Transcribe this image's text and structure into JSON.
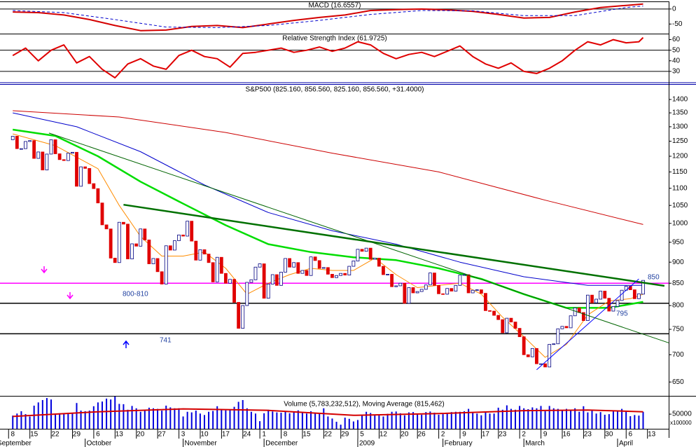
{
  "chart_data": [
    {
      "type": "line",
      "title": "MACD (16.6557)",
      "xlim": [
        -3,
        154
      ],
      "ylim": [
        -82,
        23
      ],
      "yticks": [
        0,
        -50
      ],
      "hlines": [
        0
      ],
      "series": [
        {
          "color": "#d40000",
          "width": 2,
          "x": [
            0,
            6,
            12,
            18,
            24,
            30,
            36,
            42,
            48,
            54,
            60,
            66,
            72,
            78,
            84,
            90,
            96,
            102,
            108,
            114,
            120,
            126,
            132,
            138,
            144,
            148
          ],
          "values": [
            -10,
            -12,
            -20,
            -35,
            -55,
            -72,
            -70,
            -58,
            -55,
            -62,
            -50,
            -38,
            -28,
            -20,
            -5,
            -2,
            0,
            -3,
            -8,
            -18,
            -30,
            -28,
            -10,
            5,
            12,
            16.6557
          ]
        },
        {
          "color": "#0000cc",
          "width": 1,
          "dash": true,
          "x": [
            0,
            12,
            24,
            36,
            48,
            60,
            72,
            84,
            96,
            108,
            120,
            132,
            144,
            148
          ],
          "values": [
            -5,
            -12,
            -35,
            -60,
            -62,
            -55,
            -38,
            -18,
            -5,
            -6,
            -22,
            -22,
            5,
            10
          ]
        }
      ]
    },
    {
      "type": "line",
      "title": "Relative Strength Index (61.9725)",
      "xlim": [
        -3,
        154
      ],
      "ylim": [
        20,
        65
      ],
      "yticks": [
        30,
        40,
        50,
        60
      ],
      "hlines": [
        50,
        30
      ],
      "series": [
        {
          "color": "#e00000",
          "width": 2,
          "x": [
            0,
            3,
            6,
            9,
            12,
            15,
            18,
            21,
            24,
            27,
            30,
            33,
            36,
            39,
            42,
            45,
            48,
            51,
            54,
            57,
            60,
            63,
            66,
            69,
            72,
            75,
            78,
            81,
            84,
            87,
            90,
            93,
            96,
            99,
            102,
            105,
            108,
            111,
            114,
            117,
            120,
            123,
            126,
            129,
            132,
            135,
            138,
            141,
            144,
            147,
            148
          ],
          "values": [
            45,
            52,
            40,
            50,
            55,
            38,
            44,
            32,
            24,
            37,
            42,
            35,
            32,
            45,
            50,
            44,
            42,
            34,
            47,
            48,
            50,
            52,
            48,
            50,
            53,
            49,
            52,
            58,
            55,
            47,
            42,
            46,
            48,
            44,
            49,
            54,
            44,
            37,
            33,
            38,
            30,
            28,
            33,
            40,
            50,
            58,
            55,
            60,
            57,
            58,
            61.9725
          ]
        }
      ]
    },
    {
      "type": "candlestick",
      "title": "S&P500 (825.160, 856.560, 825.160, 856.560, +31.4000)",
      "log": true,
      "xlim": [
        -3,
        154
      ],
      "ylim": [
        626,
        1457
      ],
      "yticks": [
        650,
        700,
        750,
        800,
        850,
        900,
        950,
        1000,
        1050,
        1100,
        1150,
        1200,
        1250,
        1300,
        1350,
        1400
      ],
      "up_color": "#ffffff",
      "up_edge": "#000080",
      "down_color": "#e00000",
      "open": [
        1255,
        1267,
        1225,
        1225,
        1249,
        1252,
        1193,
        1214,
        1156,
        1207,
        1255,
        1208,
        1189,
        1186,
        1210,
        1213,
        1106,
        1166,
        1161,
        1114,
        1099,
        1057,
        996,
        985,
        910,
        899,
        1003,
        998,
        908,
        946,
        940,
        985,
        956,
        896,
        909,
        877,
        848,
        941,
        930,
        954,
        969,
        966,
        1006,
        953,
        905,
        931,
        920,
        899,
        853,
        912,
        873,
        850,
        859,
        807,
        752,
        800,
        852,
        858,
        888,
        896,
        816,
        848,
        870,
        845,
        876,
        909,
        888,
        899,
        873,
        880,
        868,
        913,
        904,
        885,
        887,
        871,
        863,
        868,
        873,
        869,
        890,
        903,
        932,
        927,
        935,
        907,
        910,
        890,
        870,
        871,
        842,
        844,
        850,
        805,
        840,
        828,
        831,
        836,
        846,
        874,
        845,
        826,
        825,
        838,
        832,
        845,
        869,
        870,
        828,
        834,
        835,
        827,
        789,
        788,
        779,
        770,
        743,
        773,
        765,
        752,
        735,
        700,
        696,
        712,
        683,
        683,
        677,
        720,
        721,
        751,
        756,
        753,
        778,
        795,
        785,
        768,
        823,
        806,
        814,
        832,
        816,
        788,
        798,
        811,
        834,
        843,
        835,
        815,
        825.16
      ],
      "close": [
        1267,
        1225,
        1225,
        1249,
        1252,
        1193,
        1214,
        1156,
        1207,
        1255,
        1208,
        1189,
        1186,
        1210,
        1213,
        1106,
        1166,
        1161,
        1114,
        1099,
        1057,
        996,
        985,
        910,
        899,
        1003,
        998,
        908,
        946,
        940,
        985,
        956,
        896,
        909,
        877,
        848,
        941,
        930,
        954,
        969,
        966,
        1006,
        953,
        905,
        931,
        920,
        899,
        853,
        912,
        873,
        850,
        859,
        807,
        752,
        800,
        852,
        858,
        888,
        896,
        816,
        848,
        870,
        845,
        876,
        909,
        888,
        899,
        873,
        880,
        868,
        913,
        904,
        885,
        887,
        871,
        863,
        868,
        873,
        869,
        890,
        903,
        932,
        927,
        935,
        907,
        910,
        890,
        870,
        871,
        842,
        844,
        850,
        805,
        840,
        828,
        831,
        836,
        846,
        874,
        845,
        826,
        825,
        838,
        832,
        845,
        869,
        870,
        828,
        834,
        835,
        827,
        789,
        788,
        779,
        770,
        743,
        773,
        765,
        752,
        735,
        700,
        696,
        712,
        683,
        683,
        677,
        720,
        721,
        751,
        756,
        753,
        778,
        795,
        785,
        768,
        823,
        806,
        814,
        832,
        816,
        788,
        798,
        811,
        834,
        843,
        835,
        815,
        826,
        856.56
      ],
      "series": [
        {
          "color": "#cc0000",
          "width": 1,
          "x": [
            0,
            25,
            50,
            75,
            100,
            125,
            148
          ],
          "values": [
            1358,
            1335,
            1280,
            1210,
            1150,
            1065,
            997
          ]
        },
        {
          "color": "#0000cc",
          "width": 1,
          "x": [
            0,
            15,
            30,
            45,
            60,
            75,
            90,
            105,
            120,
            135,
            148
          ],
          "values": [
            1350,
            1300,
            1215,
            1110,
            1030,
            980,
            945,
            900,
            865,
            845,
            845
          ]
        },
        {
          "color": "#00dd00",
          "width": 2.5,
          "x": [
            0,
            10,
            20,
            30,
            40,
            50,
            60,
            70,
            80,
            90,
            100,
            110,
            120,
            130,
            140,
            148
          ],
          "values": [
            1290,
            1268,
            1200,
            1120,
            1055,
            995,
            945,
            925,
            912,
            905,
            885,
            860,
            825,
            795,
            795,
            808
          ]
        },
        {
          "color": "#ff8c00",
          "width": 1,
          "x": [
            0,
            10,
            20,
            25,
            30,
            35,
            40,
            45,
            50,
            55,
            60,
            65,
            70,
            75,
            80,
            85,
            90,
            95,
            100,
            105,
            110,
            115,
            120,
            125,
            130,
            135,
            140,
            145,
            148
          ],
          "values": [
            1275,
            1235,
            1160,
            1050,
            965,
            915,
            915,
            925,
            885,
            825,
            850,
            870,
            885,
            880,
            880,
            910,
            870,
            840,
            845,
            850,
            825,
            775,
            735,
            695,
            720,
            780,
            810,
            815,
            825
          ]
        }
      ],
      "trendlines": [
        {
          "color": "#007000",
          "width": 2.5,
          "x": [
            26,
            153
          ],
          "values": [
            1052,
            844
          ]
        },
        {
          "color": "#006400",
          "width": 1,
          "x": [
            8.5,
            154
          ],
          "values": [
            1278,
            723
          ]
        },
        {
          "color": "#0000ff",
          "width": 1,
          "x": [
            123,
            147
          ],
          "values": [
            672,
            860
          ]
        }
      ],
      "levels": [
        {
          "value": 850,
          "color": "#ff00ff"
        },
        {
          "value": 805,
          "color": "#000000"
        },
        {
          "value": 741,
          "color": "#000000"
        }
      ],
      "annotations": [
        "850",
        "800-810",
        "741",
        "795"
      ]
    },
    {
      "type": "bar",
      "title": "Volume (5,783,232,512), Moving Average (815,462)",
      "xlim": [
        -3,
        154
      ],
      "ylim": [
        0,
        110000
      ],
      "yticks": [
        50000
      ],
      "unit_label": "x100000",
      "color": "#0000dd",
      "values": [
        45000,
        52000,
        60000,
        50000,
        42000,
        79000,
        90000,
        98000,
        105000,
        100000,
        52000,
        53000,
        53000,
        55000,
        52000,
        88000,
        62000,
        60000,
        62000,
        77000,
        90000,
        93000,
        103000,
        100000,
        110000,
        85000,
        84000,
        65000,
        78000,
        70000,
        58000,
        61000,
        72000,
        70000,
        68000,
        62000,
        79000,
        73000,
        70000,
        70000,
        42000,
        58000,
        56000,
        62000,
        52000,
        47000,
        58000,
        61000,
        77000,
        64000,
        63000,
        64000,
        75000,
        92000,
        98000,
        70000,
        58000,
        52000,
        26000,
        53000,
        65000,
        59000,
        56000,
        55000,
        60000,
        53000,
        58000,
        63000,
        55000,
        52000,
        60000,
        52000,
        55000,
        70000,
        42000,
        35000,
        24000,
        14000,
        38000,
        34000,
        25000,
        30000,
        48000,
        58000,
        54000,
        48000,
        46000,
        42000,
        51000,
        58000,
        59000,
        53000,
        46000,
        56000,
        57000,
        52000,
        48000,
        57000,
        59000,
        55000,
        48000,
        50000,
        53000,
        57000,
        58000,
        58000,
        60000,
        68000,
        54000,
        52000,
        46000,
        55000,
        52000,
        52000,
        72000,
        65000,
        80000,
        68000,
        65000,
        78000,
        70000,
        67000,
        73000,
        70000,
        78000,
        60000,
        78000,
        70000,
        68000,
        64000,
        68000,
        62000,
        70000,
        58000,
        77000,
        56000,
        62000,
        52000,
        57000,
        48000,
        50000,
        62000,
        60000,
        68000,
        59000,
        43000,
        47000,
        45000,
        57832
      ],
      "series": [
        {
          "color": "#d40000",
          "width": 2,
          "x": [
            0,
            20,
            40,
            60,
            80,
            100,
            120,
            135,
            148
          ],
          "values": [
            42000,
            58000,
            68000,
            63000,
            46000,
            52000,
            62000,
            64000,
            58000
          ]
        }
      ],
      "xticks": [
        {
          "value": 0,
          "label": "8"
        },
        {
          "value": 5,
          "label": "15"
        },
        {
          "value": 10,
          "label": "22"
        },
        {
          "value": 15,
          "label": "29"
        },
        {
          "value": 20,
          "label": "6"
        },
        {
          "value": 25,
          "label": "13"
        },
        {
          "value": 30,
          "label": "20"
        },
        {
          "value": 35,
          "label": "27"
        },
        {
          "value": 40,
          "label": "3"
        },
        {
          "value": 45,
          "label": "10"
        },
        {
          "value": 50,
          "label": "17"
        },
        {
          "value": 55,
          "label": "24"
        },
        {
          "value": 59,
          "label": "1"
        },
        {
          "value": 64,
          "label": "8"
        },
        {
          "value": 69,
          "label": "15"
        },
        {
          "value": 74,
          "label": "22"
        },
        {
          "value": 78,
          "label": "29"
        },
        {
          "value": 82,
          "label": "5"
        },
        {
          "value": 87,
          "label": "12"
        },
        {
          "value": 92,
          "label": "20"
        },
        {
          "value": 96,
          "label": "26"
        },
        {
          "value": 101,
          "label": "2"
        },
        {
          "value": 106,
          "label": "9"
        },
        {
          "value": 111,
          "label": "17"
        },
        {
          "value": 115,
          "label": "23"
        },
        {
          "value": 120,
          "label": "2"
        },
        {
          "value": 125,
          "label": "9"
        },
        {
          "value": 130,
          "label": "16"
        },
        {
          "value": 135,
          "label": "23"
        },
        {
          "value": 140,
          "label": "30"
        },
        {
          "value": 145,
          "label": "6"
        },
        {
          "value": 150,
          "label": "13"
        }
      ],
      "month_ticks": [
        {
          "value": -4,
          "label": "September"
        },
        {
          "value": 17,
          "label": "October"
        },
        {
          "value": 40,
          "label": "November"
        },
        {
          "value": 59,
          "label": "December"
        },
        {
          "value": 81,
          "label": "2009"
        },
        {
          "value": 101,
          "label": "February"
        },
        {
          "value": 120,
          "label": "March"
        },
        {
          "value": 142,
          "label": "April"
        }
      ]
    }
  ]
}
